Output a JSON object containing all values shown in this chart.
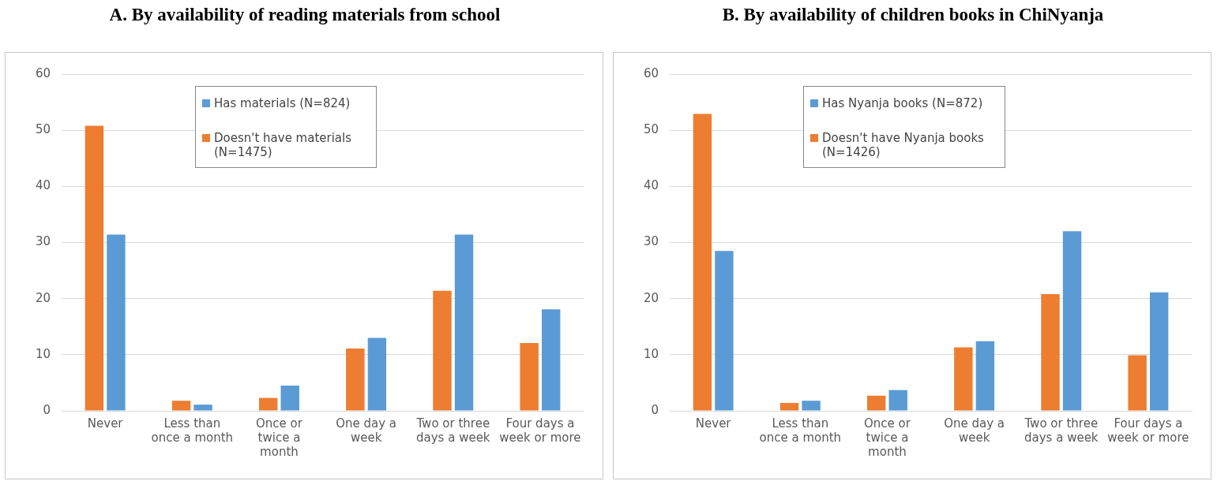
{
  "chart_data": [
    {
      "type": "bar",
      "title": "A.   By availability of reading materials from school",
      "categories": [
        "Never",
        "Less than once a month",
        "Once or twice a month",
        "One day a week",
        "Two or three days a week",
        "Four days a week or more"
      ],
      "series": [
        {
          "name": "Doesn't have materials (N=1475)",
          "color": "#ed7d31",
          "values": [
            50.8,
            1.8,
            2.3,
            11.1,
            21.4,
            12.1
          ]
        },
        {
          "name": "Has materials (N=824)",
          "color": "#5b9bd5",
          "values": [
            31.4,
            1.1,
            4.5,
            13.0,
            31.4,
            18.1
          ]
        }
      ],
      "ylim": [
        0,
        60
      ],
      "yticks": [
        0,
        10,
        20,
        30,
        40,
        50,
        60
      ],
      "grid": "y",
      "legend": "top left"
    },
    {
      "type": "bar",
      "title": "B. By availability of children books in ChiNyanja",
      "categories": [
        "Never",
        "Less than once a month",
        "Once or twice a month",
        "One day a week",
        "Two or three days a week",
        "Four days a week or more"
      ],
      "series": [
        {
          "name": "Doesn't have Nyanja books (N=1426)",
          "color": "#ed7d31",
          "values": [
            52.9,
            1.4,
            2.7,
            11.3,
            20.8,
            9.9
          ]
        },
        {
          "name": "Has Nyanja books (N=872)",
          "color": "#5b9bd5",
          "values": [
            28.5,
            1.8,
            3.7,
            12.4,
            32.0,
            21.1
          ]
        }
      ],
      "ylim": [
        0,
        60
      ],
      "yticks": [
        0,
        10,
        20,
        30,
        40,
        50,
        60
      ],
      "grid": "y",
      "legend": "top left"
    }
  ]
}
